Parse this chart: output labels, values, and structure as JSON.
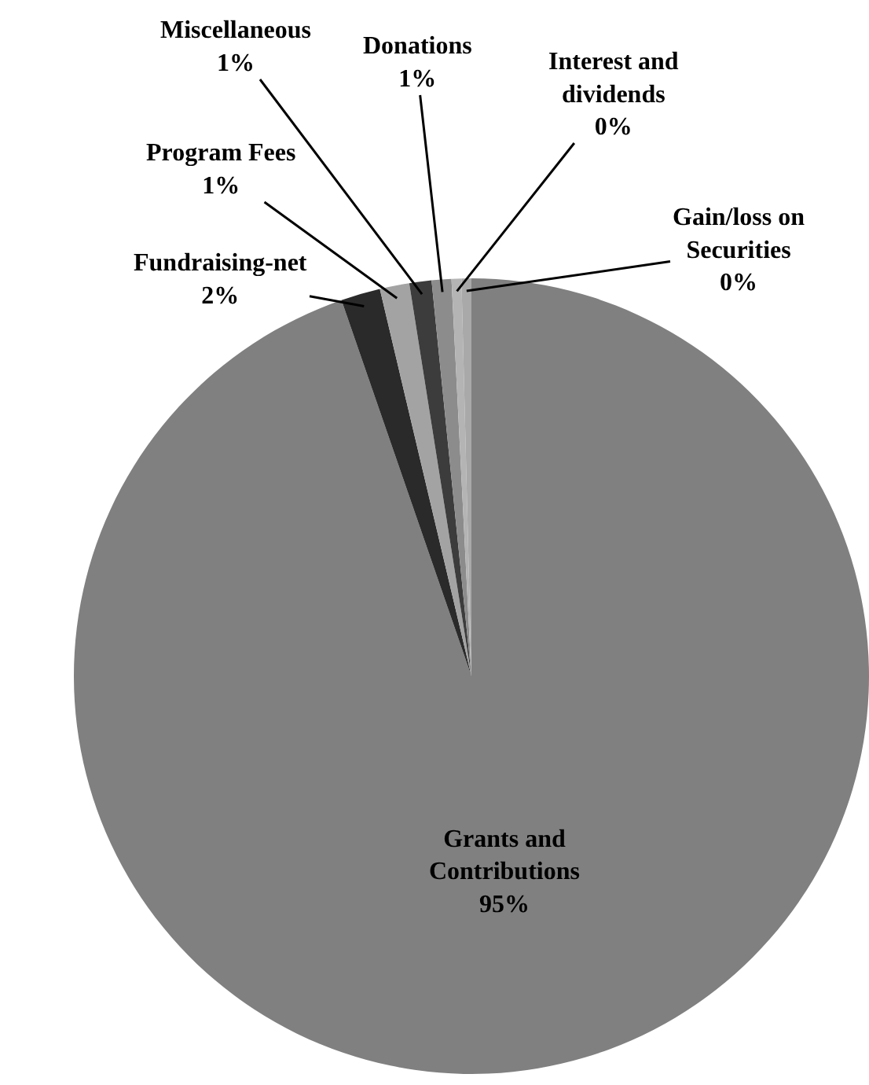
{
  "chart_data": {
    "type": "pie",
    "categories": [
      "Grants and Contributions",
      "Fundraising-net",
      "Program Fees",
      "Miscellaneous",
      "Donations",
      "Interest and dividends",
      "Gain/loss on Securities"
    ],
    "values": [
      94.7,
      1.6,
      1.2,
      0.9,
      0.8,
      0.4,
      0.4
    ],
    "value_labels": [
      "95%",
      "2%",
      "1%",
      "1%",
      "1%",
      "0%",
      "0%"
    ],
    "colors": [
      "#808080",
      "#2a2a2a",
      "#a3a3a3",
      "#3c3c3c",
      "#8c8c8c",
      "#b4b4b4",
      "#a9a9a9"
    ],
    "legend": false
  }
}
